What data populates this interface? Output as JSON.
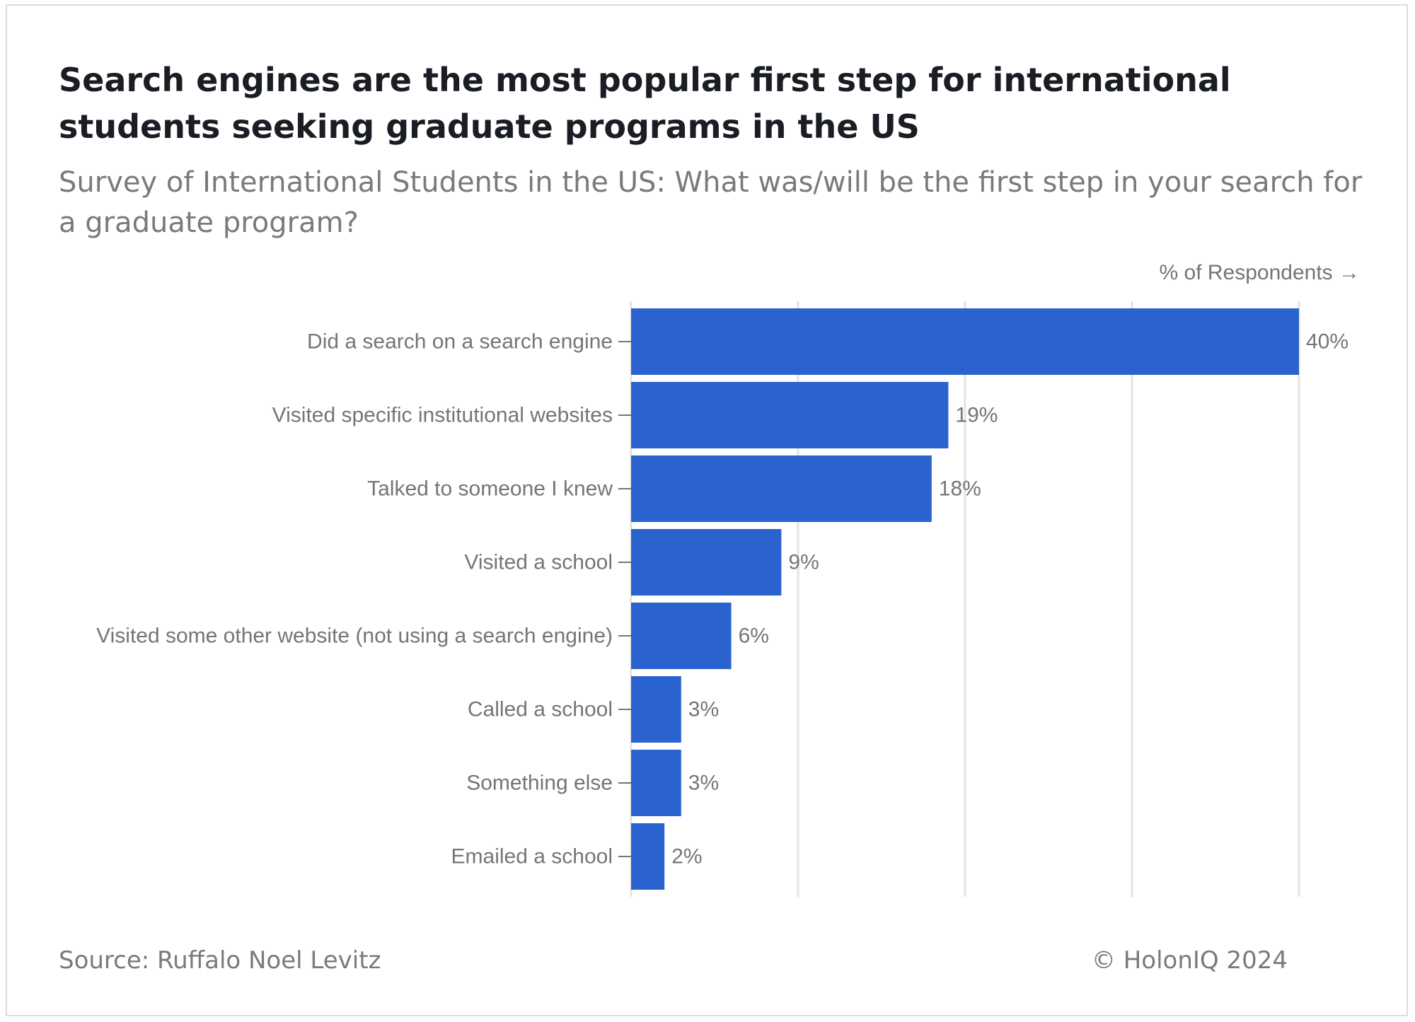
{
  "title": "Search engines are the most popular first step for international students seeking graduate programs in the US",
  "subtitle": "Survey of International Students in the US: What was/will be the first step in your search for a graduate program?",
  "footer": {
    "source": "Source: Ruffalo Noel Levitz",
    "credit": "© HolonIQ 2024"
  },
  "colors": {
    "bar": "#2a63cd",
    "grid": "#e3e3e3",
    "label": "#757575",
    "title": "#1a1d24"
  },
  "chart_data": {
    "type": "bar",
    "orientation": "horizontal",
    "xlabel": "% of Respondents →",
    "xlim": [
      0,
      40
    ],
    "grid": true,
    "categories": [
      "Did a search on a search engine",
      "Visited specific institutional websites",
      "Talked to someone I knew",
      "Visited a school",
      "Visited some other website (not using a search engine)",
      "Called a school",
      "Something else",
      "Emailed a school"
    ],
    "values": [
      40,
      19,
      18,
      9,
      6,
      3,
      3,
      2
    ],
    "value_labels": [
      "40%",
      "19%",
      "18%",
      "9%",
      "6%",
      "3%",
      "3%",
      "2%"
    ]
  }
}
